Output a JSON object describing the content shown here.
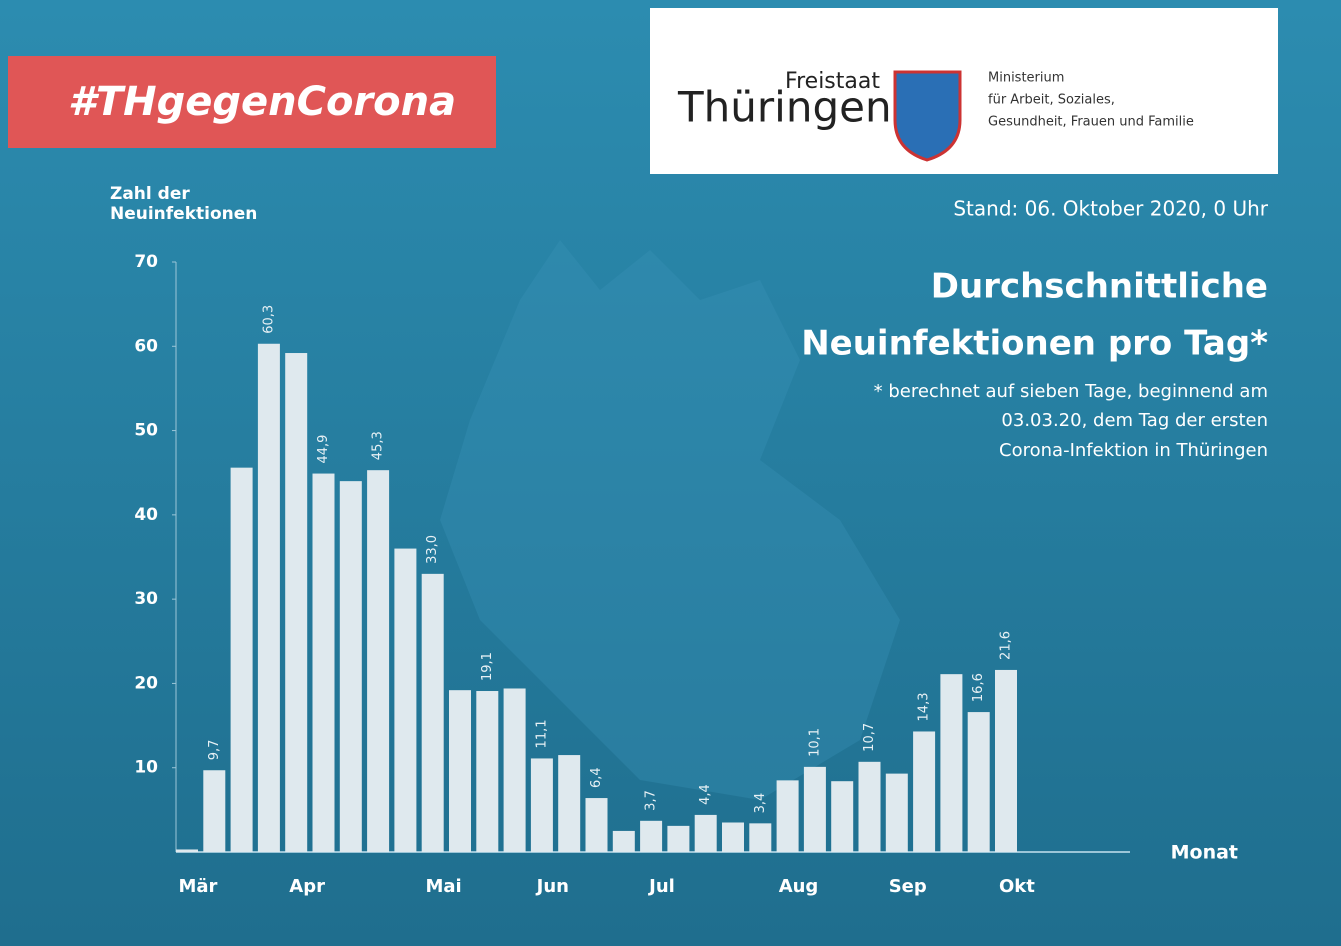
{
  "header": {
    "hashtag": "#THgegenCorona",
    "logo_small": "Freistaat",
    "logo_large": "Thüringen",
    "ministry": [
      "Ministerium",
      "für Arbeit, Soziales,",
      "Gesundheit, Frauen und Familie"
    ]
  },
  "chart_data": {
    "type": "bar",
    "title": [
      "Durchschnittliche",
      "Neuinfektionen pro Tag*"
    ],
    "subtitle": "Stand: 06. Oktober 2020, 0 Uhr",
    "footnote": [
      "* berechnet auf sieben Tage, beginnend am",
      "03.03.20, dem Tag der ersten",
      "Corona-Infektion in Thüringen"
    ],
    "y_label": [
      "Zahl der",
      "Neuinfektionen"
    ],
    "x_label": "Monat",
    "categories": [
      "Mär",
      null,
      null,
      null,
      "Apr",
      null,
      null,
      null,
      null,
      "Mai",
      null,
      null,
      null,
      "Jun",
      null,
      null,
      null,
      "Jul",
      null,
      null,
      null,
      null,
      "Aug",
      null,
      null,
      null,
      "Sep",
      null,
      null,
      null,
      "Okt"
    ],
    "values": [
      0.3,
      9.7,
      45.6,
      60.3,
      59.2,
      44.9,
      44.0,
      45.3,
      36.0,
      33.0,
      19.2,
      19.1,
      19.4,
      11.1,
      11.5,
      6.4,
      2.5,
      3.7,
      3.1,
      4.4,
      3.5,
      3.4,
      8.5,
      10.1,
      8.4,
      10.7,
      9.3,
      14.3,
      21.1,
      16.6,
      21.6
    ],
    "value_labels": [
      null,
      "9,7",
      null,
      "60,3",
      null,
      "44,9",
      null,
      "45,3",
      null,
      "33,0",
      null,
      "19,1",
      null,
      "11,1",
      null,
      "6,4",
      null,
      "3,7",
      null,
      "4,4",
      null,
      "3,4",
      null,
      "10,1",
      null,
      "10,7",
      null,
      "14,3",
      null,
      "16,6",
      "21,6"
    ],
    "color": "#dfe9ee",
    "ylim": [
      0,
      70
    ],
    "yticks": [
      10,
      20,
      30,
      40,
      50,
      60,
      70
    ]
  }
}
